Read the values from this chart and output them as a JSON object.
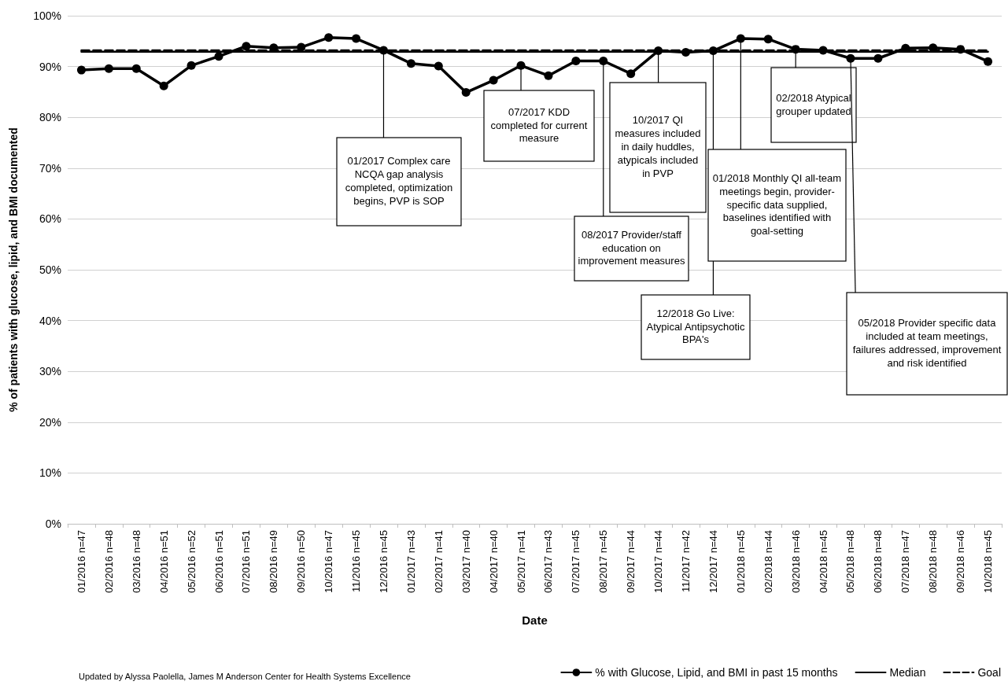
{
  "chart_data": {
    "type": "line",
    "xlabel": "Date",
    "ylabel": "% of patients with glucose, lipid, and BMI documented",
    "categories": [
      "01/2016 n=47",
      "02/2016 n=48",
      "03/2016 n=48",
      "04/2016 n=51",
      "05/2016 n=52",
      "06/2016 n=51",
      "07/2016 n=51",
      "08/2016 n=49",
      "09/2016 n=50",
      "10/2016 n=47",
      "11/2016 n=45",
      "12/2016 n=45",
      "01/2017 n=43",
      "02/2017 n=41",
      "03/2017 n=40",
      "04/2017 n=40",
      "05/2017 n=41",
      "06/2017 n=43",
      "07/2017 n=45",
      "08/2017 n=45",
      "09/2017 n=44",
      "10/2017 n=44",
      "11/2017 n=42",
      "12/2017 n=44",
      "01/2018 n=45",
      "02/2018 n=44",
      "03/2018 n=46",
      "04/2018 n=45",
      "05/2018 n=48",
      "06/2018 n=48",
      "07/2018 n=47",
      "08/2018 n=48",
      "09/2018 n=46",
      "10/2018 n=45"
    ],
    "series": [
      {
        "name": "% with Glucose, Lipid, and BMI in past 15 months",
        "color": "#000000",
        "marker": "circle",
        "line_style": "solid",
        "values": [
          89.3,
          89.6,
          89.6,
          86.2,
          90.2,
          92.0,
          94.0,
          93.7,
          93.8,
          95.7,
          95.5,
          93.2,
          90.6,
          90.1,
          84.9,
          87.3,
          90.2,
          88.2,
          91.1,
          91.1,
          88.6,
          93.1,
          92.8,
          93.1,
          95.5,
          95.4,
          93.4,
          93.2,
          91.6,
          91.6,
          93.6,
          93.7,
          93.4,
          91.0
        ]
      },
      {
        "name": "Median",
        "color": "#000000",
        "marker": "none",
        "line_style": "solid",
        "values": [
          92.9,
          92.9,
          92.9,
          92.9,
          92.9,
          92.9,
          92.9,
          92.9,
          92.9,
          92.9,
          92.9,
          92.9,
          92.9,
          92.9,
          92.9,
          92.9,
          92.9,
          92.9,
          92.9,
          92.9,
          92.9,
          92.9,
          92.9,
          92.9,
          92.9,
          92.9,
          92.9,
          92.9,
          92.9,
          92.9,
          92.9,
          92.9,
          92.9,
          92.9
        ]
      },
      {
        "name": "Goal",
        "color": "#000000",
        "marker": "none",
        "line_style": "dashed",
        "values": [
          93.2,
          93.2,
          93.2,
          93.2,
          93.2,
          93.2,
          93.2,
          93.2,
          93.2,
          93.2,
          93.2,
          93.2,
          93.2,
          93.2,
          93.2,
          93.2,
          93.2,
          93.2,
          93.2,
          93.2,
          93.2,
          93.2,
          93.2,
          93.2,
          93.2,
          93.2,
          93.2,
          93.2,
          93.2,
          93.2,
          93.2,
          93.2,
          93.2,
          93.2
        ]
      }
    ],
    "ylim": [
      0,
      100
    ],
    "yticks": [
      {
        "value": 0,
        "label": "0%"
      },
      {
        "value": 10,
        "label": "10%"
      },
      {
        "value": 20,
        "label": "20%"
      },
      {
        "value": 30,
        "label": "30%"
      },
      {
        "value": 40,
        "label": "40%"
      },
      {
        "value": 50,
        "label": "50%"
      },
      {
        "value": 60,
        "label": "60%"
      },
      {
        "value": 70,
        "label": "70%"
      },
      {
        "value": 80,
        "label": "80%"
      },
      {
        "value": 90,
        "label": "90%"
      },
      {
        "value": 100,
        "label": "100%"
      }
    ],
    "grid": "y",
    "legend": "bottom right",
    "annotations": [
      {
        "text": "01/2017 Complex care NCQA gap analysis completed, optimization begins, PVP is SOP",
        "x": "12/2016 n=45",
        "y": 93.2
      },
      {
        "text": "07/2017 KDD completed for current measure",
        "x": "05/2017 n=41",
        "y": 90.2
      },
      {
        "text": "08/2017 Provider/staff education on improvement measures",
        "x": "08/2017 n=45",
        "y": 91.1
      },
      {
        "text": "10/2017 QI measures included in daily huddles, atypicals included in PVP",
        "x": "10/2017 n=44",
        "y": 93.1
      },
      {
        "text": "12/2018 Go Live: Atypical Antipsychotic BPA's",
        "x": "12/2017 n=44",
        "y": 93.1
      },
      {
        "text": "01/2018 Monthly QI all-team meetings begin, provider-specific data supplied, baselines identified with goal-setting",
        "x": "01/2018 n=45",
        "y": 95.5
      },
      {
        "text": "02/2018 Atypical grouper updated",
        "x": "03/2018 n=46",
        "y": 93.4
      },
      {
        "text": "05/2018 Provider specific data included at team meetings, failures addressed, improvement and risk identified",
        "x": "05/2018 n=48",
        "y": 91.6
      },
      "Updated by Alyssa Paolella, James M Anderson Center for Health Systems Excellence"
    ]
  }
}
